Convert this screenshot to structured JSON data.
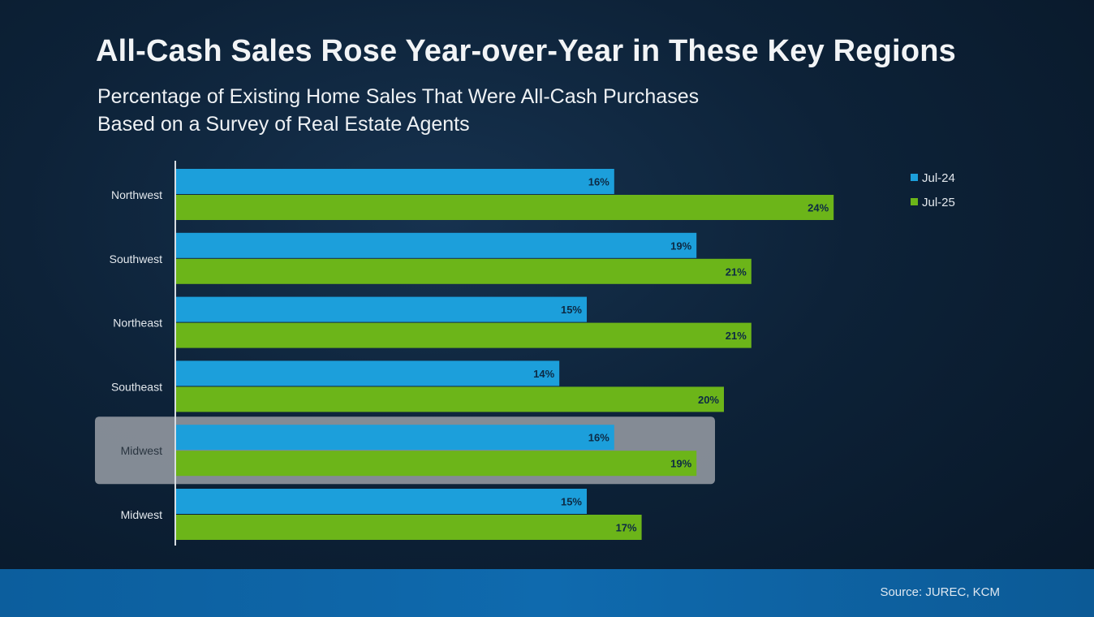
{
  "chart_data": {
    "type": "bar",
    "orientation": "horizontal",
    "title": "All-Cash Sales Rose Year-over-Year in These Key Regions",
    "subtitle_lines": [
      "Percentage of Existing Home Sales That Were All-Cash Purchases",
      "Based on a Survey of Real Estate Agents"
    ],
    "categories": [
      "Northwest",
      "Southwest",
      "Northeast",
      "Southeast",
      "Midwest",
      "Midwest"
    ],
    "series": [
      {
        "name": "Jul-24",
        "color": "#1c9fdb",
        "values": [
          16,
          19,
          15,
          14,
          16,
          15
        ],
        "labels": [
          "16%",
          "19%",
          "15%",
          "14%",
          "16%",
          "15%"
        ]
      },
      {
        "name": "Jul-25",
        "color": "#6cb519",
        "values": [
          24,
          21,
          21,
          20,
          19,
          17
        ],
        "labels": [
          "24%",
          "21%",
          "21%",
          "20%",
          "19%",
          "17%"
        ]
      }
    ],
    "highlighted_category_index": 4,
    "xlim": [
      0,
      32
    ],
    "grid": false,
    "legend_position": "top-right"
  },
  "source": "Source: JUREC, KCM",
  "colors": {
    "highlight_box": "#8e959d",
    "label_text": "#0d2a44",
    "axis_line": "#d8dde2"
  }
}
